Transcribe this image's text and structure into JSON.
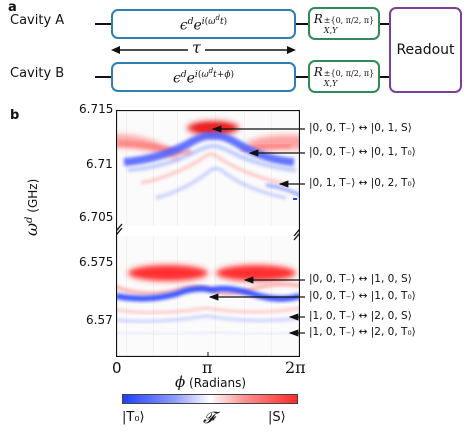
{
  "panel_a": {
    "label": "a",
    "cavity_a": "Cavity A",
    "cavity_b": "Cavity B",
    "drive_a": "ϵᵈ e^{i(ωᵈt)}",
    "drive_b": "ϵᵈ e^{i(ωᵈt+ϕ)}",
    "rotation": "R^{±{0, π/2, π}}_{X,Y}",
    "tau": "τ",
    "readout": "Readout",
    "colors": {
      "drive_box": "#2f7fb5",
      "rotation_box": "#2e8b57",
      "readout_box": "#7e3f98"
    }
  },
  "panel_b": {
    "label": "b",
    "y_axis_label": "ωᵈ (GHz)",
    "x_axis_label": "ϕ (Radians)",
    "colorbar": {
      "left": "|T₀⟩",
      "center": "𝓕",
      "right": "|S⟩",
      "colors": [
        "#1f3fff",
        "#ffffff",
        "#ff2a2a"
      ]
    }
  },
  "chart_data": {
    "type": "heatmap",
    "x_ticks": [
      "0",
      "π",
      "2π"
    ],
    "y_ticks_upper": [
      "6.715",
      "6.71",
      "6.705"
    ],
    "y_ticks_lower": [
      "6.575",
      "6.57"
    ],
    "xlim": [
      0,
      6.2832
    ],
    "ylim_upper": [
      6.7035,
      6.7152
    ],
    "ylim_lower": [
      6.5685,
      6.5785
    ],
    "broken_axis": true,
    "annotations": [
      {
        "text": "|0, 0, T₋⟩ ↔ |0, 1, S⟩",
        "phi": 3.2,
        "freq": 6.7136
      },
      {
        "text": "|0, 0, T₋⟩ ↔ |0, 1, T₀⟩",
        "phi": 4.7,
        "freq": 6.7105
      },
      {
        "text": "|0, 1, T₋⟩ ↔ |0, 2, T₀⟩",
        "phi": 5.6,
        "freq": 6.7088
      },
      {
        "text": "|0, 0, T₋⟩ ↔ |1, 0, S⟩",
        "phi": 4.15,
        "freq": 6.5742
      },
      {
        "text": "|0, 0, T₋⟩ ↔ |1, 0, T₀⟩",
        "phi": 3.3,
        "freq": 6.5725
      },
      {
        "text": "|1, 0, T₋⟩ ↔ |2, 0, S⟩",
        "phi": 5.95,
        "freq": 6.5704
      },
      {
        "text": "|1, 0, T₋⟩ ↔ |2, 0, T₀⟩",
        "phi": 5.95,
        "freq": 6.5693
      }
    ]
  }
}
